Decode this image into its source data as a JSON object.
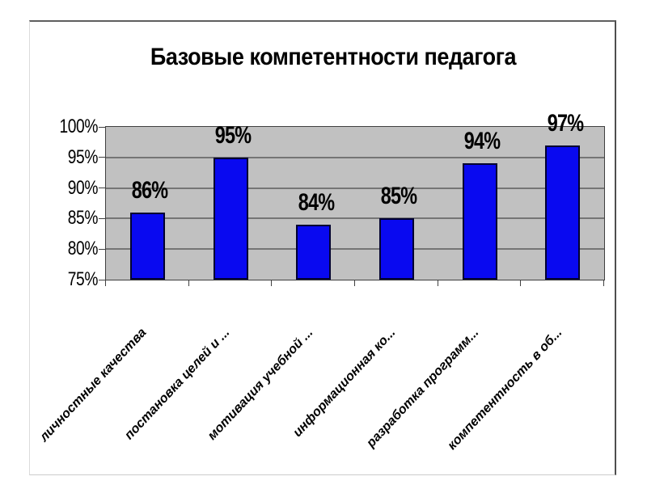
{
  "slide": {
    "background": "#ffffff"
  },
  "chart_data": {
    "type": "bar",
    "title": "Базовые компетентности педагога",
    "categories": [
      "личностные качества",
      "постановка целей и ...",
      "мотивация учебной ...",
      "информационная ко...",
      "разработка программ...",
      "компетентность в об..."
    ],
    "values": [
      86,
      95,
      84,
      85,
      94,
      97
    ],
    "value_labels": [
      "86%",
      "95%",
      "84%",
      "85%",
      "94%",
      "97%"
    ],
    "ytick_labels": [
      "100%",
      "95%",
      "90%",
      "85%",
      "80%",
      "75%"
    ],
    "ytick_values": [
      100,
      95,
      90,
      85,
      80,
      75
    ],
    "gridline_values": [
      95,
      90,
      85,
      80
    ],
    "ylim": [
      75,
      100
    ],
    "xlabel": "",
    "ylabel": "",
    "grid": true,
    "legend": "none",
    "bar_color": "#0909f0",
    "bar_border_color": "#000030",
    "plot_bg_color": "#c1c1c1",
    "gridline_color": "#757575",
    "axis_color": "#404040",
    "label_color": "#000000"
  }
}
